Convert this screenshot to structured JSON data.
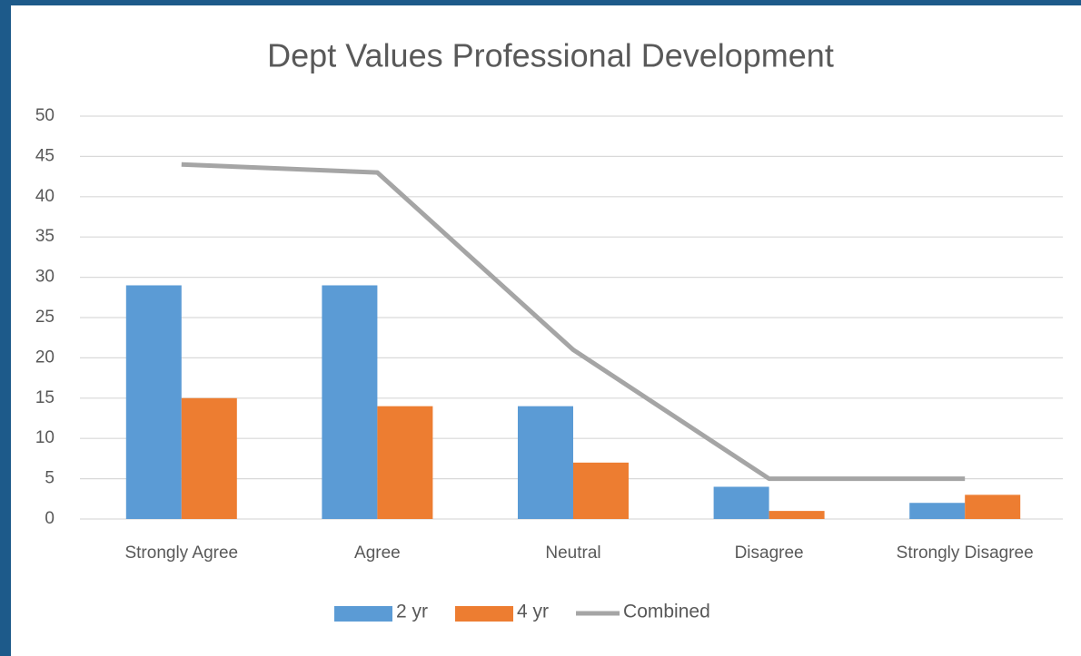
{
  "chart_data": {
    "type": "bar",
    "title": "Dept Values Professional Development",
    "categories": [
      "Strongly Agree",
      "Agree",
      "Neutral",
      "Disagree",
      "Strongly Disagree"
    ],
    "series": [
      {
        "name": "2 yr",
        "color": "#5b9bd5",
        "values": [
          29,
          29,
          14,
          4,
          2
        ]
      },
      {
        "name": "4 yr",
        "color": "#ed7d31",
        "values": [
          15,
          14,
          7,
          1,
          3
        ]
      },
      {
        "name": "Combined",
        "color": "#a5a5a5",
        "type": "line",
        "values": [
          44,
          43,
          21,
          5,
          5
        ]
      }
    ],
    "ylim": [
      0,
      50
    ],
    "yticks": [
      0,
      5,
      10,
      15,
      20,
      25,
      30,
      35,
      40,
      45,
      50
    ],
    "grid": true,
    "legend": "bottom"
  }
}
